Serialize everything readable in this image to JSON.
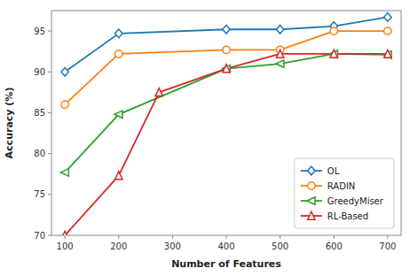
{
  "chart_data": {
    "type": "line",
    "xlabel": "Number of Features",
    "ylabel": "Accuracy (%)",
    "xlim": [
      75,
      725
    ],
    "ylim": [
      70,
      97.5
    ],
    "xticks": [
      100,
      200,
      300,
      400,
      500,
      600,
      700
    ],
    "yticks": [
      70,
      75,
      80,
      85,
      90,
      95
    ],
    "legend": "lower right",
    "grid": false,
    "series": [
      {
        "name": "OL",
        "color": "#1f77b4",
        "marker": "diamond",
        "line_style": "solid",
        "x": [
          100,
          200,
          400,
          500,
          600,
          700
        ],
        "values": [
          90.0,
          94.7,
          95.2,
          95.2,
          95.6,
          96.7
        ]
      },
      {
        "name": "RADIN",
        "color": "#ff7f0e",
        "marker": "circle",
        "line_style": "solid",
        "x": [
          100,
          200,
          400,
          500,
          600,
          700
        ],
        "values": [
          86.0,
          92.2,
          92.7,
          92.7,
          95.0,
          95.0
        ]
      },
      {
        "name": "GreedyMiser",
        "color": "#2ca02c",
        "marker": "triangle-left",
        "line_style": "solid",
        "x": [
          100,
          200,
          400,
          500,
          600,
          700
        ],
        "values": [
          77.7,
          84.8,
          90.4,
          91.0,
          92.2,
          92.1
        ]
      },
      {
        "name": "RL-Based",
        "color": "#d62728",
        "marker": "triangle-up",
        "line_style": "solid",
        "x": [
          100,
          200,
          275,
          400,
          500,
          600,
          700
        ],
        "values": [
          70.0,
          77.3,
          87.5,
          90.4,
          92.2,
          92.2,
          92.2
        ]
      }
    ]
  }
}
